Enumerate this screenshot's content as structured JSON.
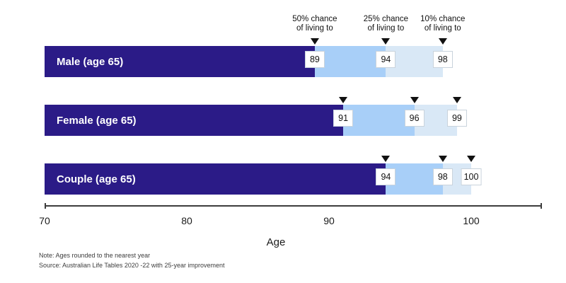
{
  "chart_data": {
    "type": "bar",
    "orientation": "horizontal",
    "title": "",
    "xlabel": "Age",
    "x_domain": [
      70,
      105
    ],
    "x_ticks": [
      70,
      80,
      90,
      100
    ],
    "grid": false,
    "annotations": [
      {
        "line1": "50% chance",
        "line2": "of living to"
      },
      {
        "line1": "25% chance",
        "line2": "of living to"
      },
      {
        "line1": "10% chance",
        "line2": "of living to"
      }
    ],
    "categories": [
      "Male (age 65)",
      "Female (age 65)",
      "Couple (age 65)"
    ],
    "series": [
      {
        "name": "50% chance of living to",
        "values": [
          89,
          91,
          94
        ]
      },
      {
        "name": "25% chance of living to",
        "values": [
          94,
          96,
          98
        ]
      },
      {
        "name": "10% chance of living to",
        "values": [
          98,
          99,
          100
        ]
      }
    ],
    "rows": [
      {
        "label": "Male (age 65)",
        "ages": [
          89,
          94,
          98
        ]
      },
      {
        "label": "Female (age 65)",
        "ages": [
          91,
          96,
          99
        ]
      },
      {
        "label": "Couple (age 65)",
        "ages": [
          94,
          98,
          100
        ]
      }
    ]
  },
  "notes": {
    "note": "Note: Ages rounded to the nearest year",
    "source": "Source: Australian Life Tables 2020 -22 with 25-year improvement"
  },
  "colors": {
    "bar_primary": "#2B1B87",
    "band_25": "#A8CFF8",
    "band_10": "#D9E8F6",
    "marker": "#111111",
    "axis": "#3D3D3D",
    "value_box_border": "#C9D3DC"
  }
}
